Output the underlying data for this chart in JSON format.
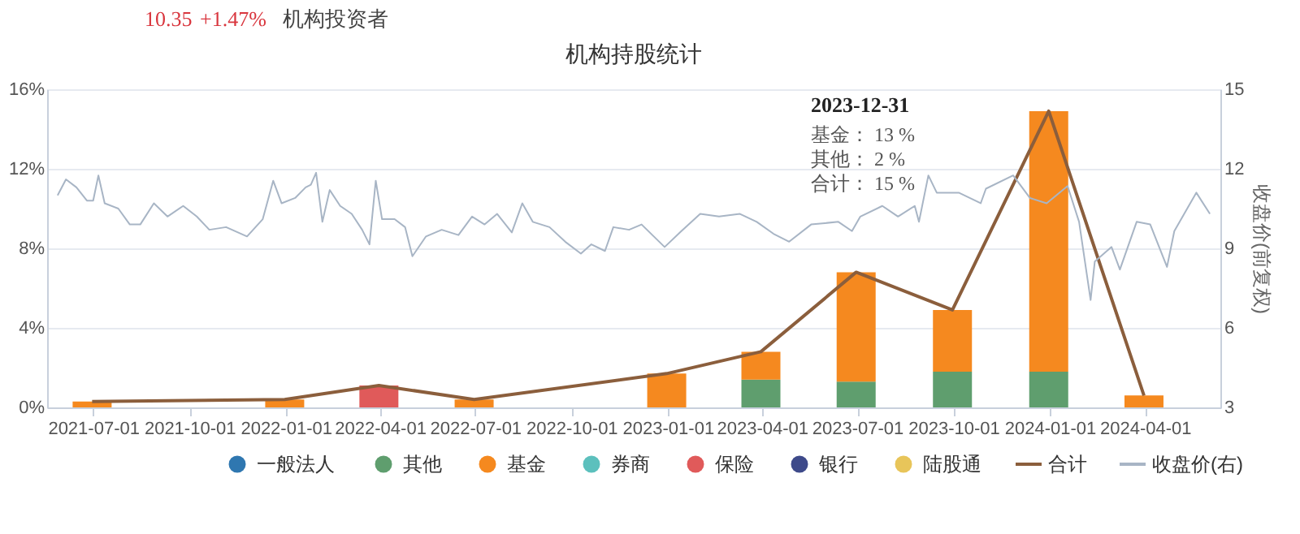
{
  "chart_data": {
    "type": "bar",
    "title": "机构持股统计",
    "stacked": true,
    "legend": "bottom",
    "grid": "y",
    "x": [
      "2021-06-30",
      "2021-12-31",
      "2022-03-31",
      "2022-06-30",
      "2022-12-31",
      "2023-03-31",
      "2023-06-30",
      "2023-09-30",
      "2023-12-31",
      "2024-03-31"
    ],
    "xlim": [
      "2021-05-18",
      "2024-06-12"
    ],
    "xticks": [
      "2021-07-01",
      "2021-10-01",
      "2022-01-01",
      "2022-04-01",
      "2022-07-01",
      "2022-10-01",
      "2023-01-01",
      "2023-04-01",
      "2023-07-01",
      "2023-10-01",
      "2024-01-01",
      "2024-04-01"
    ],
    "ylim": [
      0,
      16
    ],
    "yticks": [
      {
        "value": 0,
        "label": "0%"
      },
      {
        "value": 4,
        "label": "4%"
      },
      {
        "value": 8,
        "label": "8%"
      },
      {
        "value": 12,
        "label": "12%"
      },
      {
        "value": 16,
        "label": "16%"
      }
    ],
    "y2lim": [
      3,
      15
    ],
    "y2ticks": [
      3,
      6,
      9,
      12,
      15
    ],
    "y2label": "收盘价(前复权)",
    "series": [
      {
        "name": "一般法人",
        "color": "#2f77b0",
        "values": [
          null,
          null,
          null,
          null,
          null,
          null,
          null,
          null,
          null,
          null
        ]
      },
      {
        "name": "其他",
        "color": "#5f9e6e",
        "values": [
          null,
          null,
          null,
          null,
          null,
          1.4,
          1.3,
          1.8,
          1.8,
          null
        ]
      },
      {
        "name": "基金",
        "color": "#f5891f",
        "values": [
          0.3,
          0.4,
          null,
          0.4,
          1.7,
          1.4,
          5.5,
          3.1,
          13.1,
          0.6
        ]
      },
      {
        "name": "券商",
        "color": "#5cc0bd",
        "values": [
          null,
          null,
          null,
          null,
          null,
          null,
          null,
          null,
          null,
          null
        ]
      },
      {
        "name": "保险",
        "color": "#e05a5a",
        "values": [
          null,
          null,
          1.1,
          null,
          null,
          null,
          null,
          null,
          null,
          null
        ]
      },
      {
        "name": "银行",
        "color": "#3e4a8a",
        "values": [
          null,
          null,
          null,
          null,
          null,
          null,
          null,
          null,
          null,
          null
        ]
      },
      {
        "name": "陆股通",
        "color": "#e8c55a",
        "values": [
          null,
          null,
          null,
          null,
          null,
          null,
          null,
          null,
          null,
          null
        ]
      },
      {
        "name": "合计",
        "color": "#8b5e3c",
        "type": "line",
        "values": [
          0.3,
          0.4,
          1.1,
          0.4,
          1.7,
          2.8,
          6.8,
          4.9,
          14.9,
          0.6
        ]
      },
      {
        "name": "收盘价(右)",
        "color": "#a8b5c5",
        "type": "line",
        "axis": "y2",
        "x": [
          "2021-05-28",
          "2021-06-05",
          "2021-06-15",
          "2021-06-25",
          "2021-07-01",
          "2021-07-06",
          "2021-07-12",
          "2021-07-25",
          "2021-08-05",
          "2021-08-15",
          "2021-08-28",
          "2021-09-10",
          "2021-09-25",
          "2021-10-08",
          "2021-10-20",
          "2021-11-05",
          "2021-11-25",
          "2021-12-10",
          "2021-12-20",
          "2021-12-28",
          "2022-01-10",
          "2022-01-20",
          "2022-01-25",
          "2022-01-30",
          "2022-02-05",
          "2022-02-12",
          "2022-02-22",
          "2022-03-05",
          "2022-03-15",
          "2022-03-22",
          "2022-03-28",
          "2022-04-03",
          "2022-04-15",
          "2022-04-25",
          "2022-05-02",
          "2022-05-15",
          "2022-05-30",
          "2022-06-15",
          "2022-06-28",
          "2022-07-10",
          "2022-07-22",
          "2022-08-05",
          "2022-08-15",
          "2022-08-25",
          "2022-09-10",
          "2022-09-25",
          "2022-10-10",
          "2022-10-20",
          "2022-11-02",
          "2022-11-10",
          "2022-11-25",
          "2022-12-07",
          "2022-12-29",
          "2023-01-14",
          "2023-02-01",
          "2023-02-19",
          "2023-03-11",
          "2023-03-27",
          "2023-04-12",
          "2023-04-27",
          "2023-05-18",
          "2023-06-13",
          "2023-06-26",
          "2023-07-04",
          "2023-07-25",
          "2023-08-09",
          "2023-08-25",
          "2023-08-29",
          "2023-09-07",
          "2023-09-15",
          "2023-10-06",
          "2023-10-27",
          "2023-11-01",
          "2023-11-27",
          "2023-12-13",
          "2023-12-29",
          "2024-01-18",
          "2024-01-29",
          "2024-02-09",
          "2024-02-13",
          "2024-02-29",
          "2024-03-08",
          "2024-03-24",
          "2024-04-06",
          "2024-04-22",
          "2024-04-29",
          "2024-05-20",
          "2024-06-02"
        ],
        "values": [
          11.0,
          11.6,
          11.3,
          10.8,
          10.8,
          11.75,
          10.7,
          10.5,
          9.9,
          9.9,
          10.7,
          10.2,
          10.6,
          10.2,
          9.7,
          9.8,
          9.45,
          10.1,
          11.55,
          10.7,
          10.9,
          11.3,
          11.4,
          11.85,
          10.0,
          11.2,
          10.6,
          10.3,
          9.7,
          9.15,
          11.55,
          10.1,
          10.1,
          9.8,
          8.7,
          9.45,
          9.7,
          9.5,
          10.2,
          9.9,
          10.3,
          9.6,
          10.7,
          10.0,
          9.8,
          9.25,
          8.8,
          9.15,
          8.9,
          9.8,
          9.7,
          9.9,
          9.05,
          9.65,
          10.3,
          10.2,
          10.3,
          10.0,
          9.55,
          9.25,
          9.9,
          10.0,
          9.65,
          10.2,
          10.6,
          10.2,
          10.6,
          10.0,
          11.75,
          11.1,
          11.1,
          10.7,
          11.25,
          11.75,
          10.9,
          10.7,
          11.35,
          10.0,
          7.05,
          8.5,
          9.05,
          8.2,
          10.0,
          9.9,
          8.3,
          9.65,
          11.1,
          10.3
        ]
      }
    ],
    "annotations": [
      "10.35",
      "+1.47%",
      "机构投资者",
      "2023-12-31",
      "基金： 13 %",
      "其他： 2 %",
      "合计： 15 %"
    ]
  }
}
